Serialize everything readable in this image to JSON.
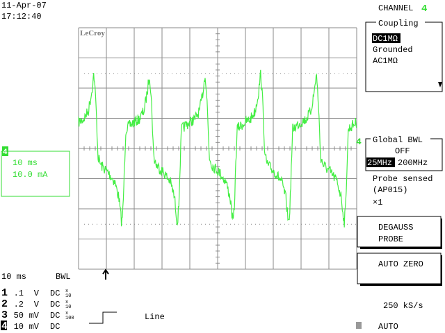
{
  "datetime": {
    "date": "11-Apr-07",
    "time": "17:12:40"
  },
  "channel_header": {
    "label": "CHANNEL",
    "number": "4"
  },
  "coupling": {
    "title": "Coupling",
    "options": [
      "DC1MΩ",
      "Grounded",
      "AC1MΩ"
    ],
    "selected": 0
  },
  "global_bwl": {
    "title": "Global BWL",
    "state": "OFF",
    "options": [
      "25MHz",
      "200MHz"
    ],
    "selected": 0
  },
  "probe": {
    "status": "Probe sensed",
    "model": "(AP015)",
    "factor": "×1"
  },
  "buttons": [
    {
      "lines": [
        "DEGAUSS",
        "PROBE"
      ]
    },
    {
      "lines": [
        "AUTO ZERO"
      ]
    }
  ],
  "sample_rate": "250 kS/s",
  "trigger_mode": "AUTO",
  "trace_box": {
    "channel": "4",
    "timebase": "10 ms",
    "scale": "10.0 mA"
  },
  "logo": "LeCroy",
  "trace_marker": "4",
  "status": {
    "timebase": "10 ms",
    "bwl": "BWL"
  },
  "channels": [
    {
      "num": "1",
      "scale": ".1",
      "unit": "V",
      "coupling": "DC",
      "probe": [
        "x",
        "10"
      ]
    },
    {
      "num": "2",
      "scale": ".2",
      "unit": "V",
      "coupling": "DC",
      "probe": [
        "x",
        "10"
      ]
    },
    {
      "num": "3",
      "scale": "50",
      "unit": "mV",
      "coupling": "DC",
      "probe": [
        "x",
        "100"
      ]
    },
    {
      "num": "4",
      "scale": "10",
      "unit": "mV",
      "coupling": "DC"
    }
  ],
  "trigger": {
    "source": "Line"
  }
}
